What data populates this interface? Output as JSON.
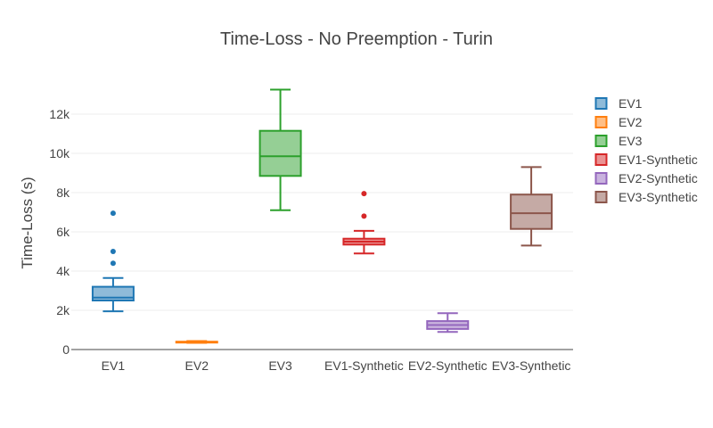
{
  "chart_data": {
    "type": "box",
    "title": "Time-Loss - No Preemption - Turin",
    "ylabel": "Time-Loss (s)",
    "xlabel": "",
    "ylim": [
      0,
      14000
    ],
    "yticks": [
      0,
      2000,
      4000,
      6000,
      8000,
      10000,
      12000
    ],
    "ytick_labels": [
      "0",
      "2k",
      "4k",
      "6k",
      "8k",
      "10k",
      "12k"
    ],
    "grid": true,
    "legend_position": "right",
    "categories": [
      "EV1",
      "EV2",
      "EV3",
      "EV1-Synthetic",
      "EV2-Synthetic",
      "EV3-Synthetic"
    ],
    "series": [
      {
        "name": "EV1",
        "color": "#1f77b4",
        "fill": "#8fbbd9",
        "min": 1950,
        "q1": 2500,
        "median": 2650,
        "q3": 3200,
        "max": 3650,
        "outliers": [
          4400,
          5000,
          6950
        ]
      },
      {
        "name": "EV2",
        "color": "#ff7f0e",
        "fill": "#ffbf86",
        "min": 340,
        "q1": 360,
        "median": 380,
        "q3": 400,
        "max": 430,
        "outliers": []
      },
      {
        "name": "EV3",
        "color": "#2ca02c",
        "fill": "#95cf95",
        "min": 7100,
        "q1": 8850,
        "median": 9850,
        "q3": 11150,
        "max": 13250,
        "outliers": []
      },
      {
        "name": "EV1-Synthetic",
        "color": "#d62728",
        "fill": "#ea9393",
        "min": 4900,
        "q1": 5350,
        "median": 5500,
        "q3": 5650,
        "max": 6050,
        "outliers": [
          6800,
          7950
        ]
      },
      {
        "name": "EV2-Synthetic",
        "color": "#9467bd",
        "fill": "#c9b3de",
        "min": 900,
        "q1": 1050,
        "median": 1250,
        "q3": 1450,
        "max": 1850,
        "outliers": []
      },
      {
        "name": "EV3-Synthetic",
        "color": "#8c564b",
        "fill": "#c5aaa5",
        "min": 5300,
        "q1": 6150,
        "median": 6950,
        "q3": 7900,
        "max": 9300,
        "outliers": []
      }
    ]
  }
}
